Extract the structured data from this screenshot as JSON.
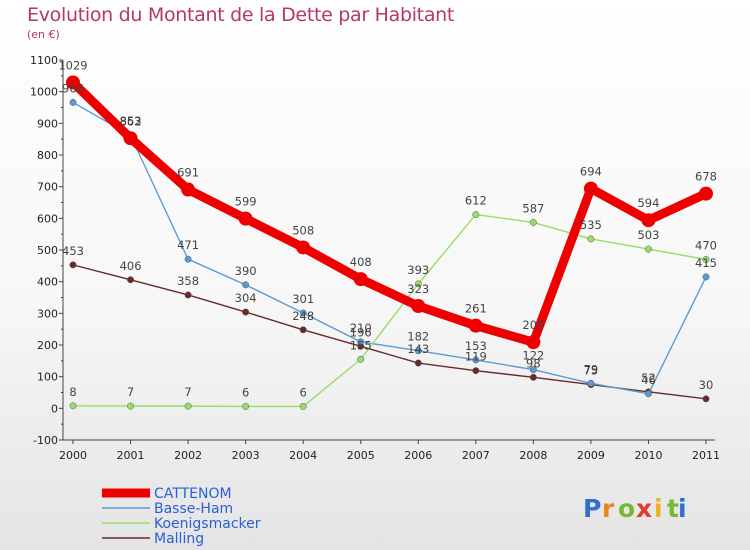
{
  "title": "Evolution du Montant de la Dette par Habitant",
  "subtitle": "(en €)",
  "brand": {
    "letters": [
      "P",
      "r",
      "o",
      "x",
      "i",
      "t",
      "i"
    ],
    "colors": [
      "#2f6fd0",
      "#e8851b",
      "#7ab834",
      "#e23c2c",
      "#f0b21c",
      "#7ab834",
      "#2f6fd0"
    ]
  },
  "chart_data": {
    "type": "line",
    "title": "Evolution du Montant de la Dette par Habitant",
    "subtitle": "(en €)",
    "x": [
      "2000",
      "2001",
      "2002",
      "2003",
      "2004",
      "2005",
      "2006",
      "2007",
      "2008",
      "2009",
      "2010",
      "2011"
    ],
    "ylim": [
      -100,
      1100
    ],
    "yticks": [
      "-100",
      "0",
      "100",
      "200",
      "300",
      "400",
      "500",
      "600",
      "700",
      "800",
      "900",
      "1000",
      "1100"
    ],
    "grid": false,
    "legend_position": "bottom-left",
    "series": [
      {
        "name": "Malling",
        "color": "#6b2a2a",
        "values": [
          453,
          406,
          358,
          304,
          248,
          196,
          143,
          119,
          98,
          75,
          52,
          30
        ],
        "labels": [
          "453",
          "406",
          "358",
          "304",
          "248",
          "196",
          "143",
          "119",
          "98",
          "75",
          "52",
          "30"
        ]
      },
      {
        "name": "Basse-Ham",
        "color": "#5b9bd5",
        "values": [
          966,
          862,
          471,
          390,
          301,
          210,
          182,
          153,
          122,
          79,
          46,
          415
        ],
        "labels": [
          "966",
          "862",
          "471",
          "390",
          "301",
          "210",
          "182",
          "153",
          "122",
          "79",
          "46",
          "415"
        ]
      },
      {
        "name": "Koenigsmacker",
        "color": "#99dd66",
        "values": [
          8,
          7,
          7,
          6,
          6,
          155,
          393,
          612,
          587,
          535,
          503,
          470
        ],
        "labels": [
          "8",
          "7",
          "7",
          "6",
          "6",
          "155",
          "393",
          "612",
          "587",
          "535",
          "503",
          "470"
        ]
      },
      {
        "name": "CATTENOM",
        "color": "#ee0000",
        "values": [
          1029,
          853,
          691,
          599,
          508,
          408,
          323,
          261,
          209,
          694,
          594,
          678
        ],
        "labels": [
          "1029",
          "853",
          "691",
          "599",
          "508",
          "408",
          "323",
          "261",
          "209",
          "694",
          "594",
          "678"
        ]
      }
    ],
    "legend": [
      "CATTENOM",
      "Basse-Ham",
      "Koenigsmacker",
      "Malling"
    ]
  }
}
